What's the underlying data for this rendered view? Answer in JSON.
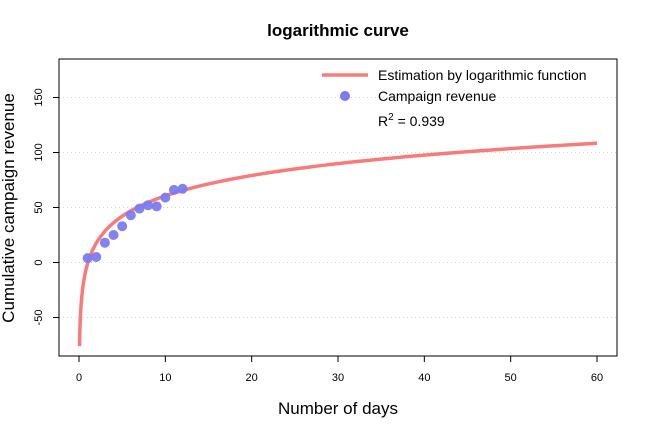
{
  "chart_data": {
    "type": "scatter",
    "title": "logarithmic curve",
    "xlabel": "Number of days",
    "ylabel": "Cumulative campaign revenue",
    "xlim": [
      0,
      60
    ],
    "ylim": [
      -75,
      175
    ],
    "x_ticks": [
      0,
      10,
      20,
      30,
      40,
      50,
      60
    ],
    "y_ticks": [
      -50,
      0,
      50,
      100,
      150
    ],
    "grid": "horizontal dotted",
    "legend_position": "top-right",
    "series": [
      {
        "name": "Estimation by logarithmic function",
        "kind": "line",
        "color": "#f87b7b",
        "model": {
          "form": "a + b*ln(x)",
          "a": -0.9,
          "b": 26.7
        },
        "x_range": [
          0.06,
          60
        ]
      },
      {
        "name": "Campaign revenue",
        "kind": "points",
        "color": "#7b7bf0",
        "x": [
          1,
          2,
          3,
          4,
          5,
          6,
          7,
          8,
          9,
          10,
          11,
          12
        ],
        "y": [
          4,
          5,
          18,
          25,
          33,
          43,
          49,
          52,
          51,
          59,
          66,
          67
        ]
      }
    ],
    "annotation": {
      "r2_label": "R",
      "r2_sup": "2",
      "r2_value": " = 0.939"
    }
  }
}
